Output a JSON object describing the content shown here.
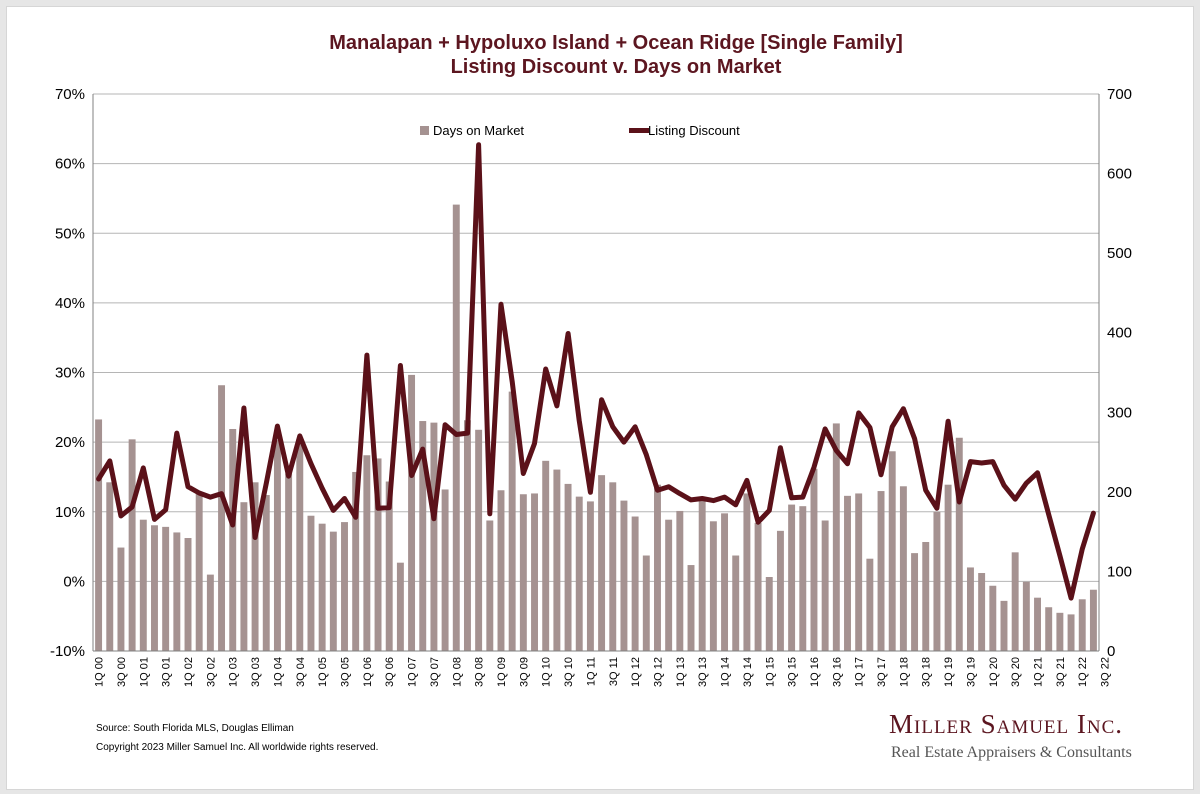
{
  "chart_data": {
    "type": "bar+line",
    "title_line1": "Manalapan + Hypoluxo Island + Ocean Ridge [Single Family]",
    "title_line2": "Listing Discount v. Days on Market",
    "left_axis": {
      "min": -10,
      "max": 70,
      "step": 10,
      "ticks": [
        "-10%",
        "0%",
        "10%",
        "20%",
        "30%",
        "40%",
        "50%",
        "60%",
        "70%"
      ]
    },
    "right_axis": {
      "min": 0,
      "max": 700,
      "step": 100,
      "ticks": [
        "0",
        "100",
        "200",
        "300",
        "400",
        "500",
        "600",
        "700"
      ]
    },
    "grid": true,
    "legend_placement": "top",
    "x_tick_labels": [
      "1Q 00",
      "3Q 00",
      "1Q 01",
      "3Q 01",
      "1Q 02",
      "3Q 02",
      "1Q 03",
      "3Q 03",
      "1Q 04",
      "3Q 04",
      "1Q 05",
      "3Q 05",
      "1Q 06",
      "3Q 06",
      "1Q 07",
      "3Q 07",
      "1Q 08",
      "3Q 08",
      "1Q 09",
      "3Q 09",
      "1Q 10",
      "3Q 10",
      "1Q 11",
      "3Q 11",
      "1Q 12",
      "3Q 12",
      "1Q 13",
      "3Q 13",
      "1Q 14",
      "3Q 14",
      "1Q 15",
      "3Q 15",
      "1Q 16",
      "3Q 16",
      "1Q 17",
      "3Q 17",
      "1Q 18",
      "3Q 18",
      "1Q 19",
      "3Q 19",
      "1Q 20",
      "3Q 20",
      "1Q 21",
      "3Q 21",
      "1Q 22",
      "3Q 22"
    ],
    "series": [
      {
        "name": "Days on Market",
        "type": "bar",
        "axis": "right",
        "color": "#a59291",
        "values": [
          291,
          212,
          130,
          266,
          165,
          158,
          156,
          149,
          142,
          198,
          96,
          334,
          279,
          187,
          212,
          196,
          265,
          223,
          266,
          170,
          160,
          150,
          162,
          225,
          246,
          242,
          213,
          111,
          347,
          289,
          287,
          203,
          561,
          290,
          278,
          164,
          202,
          326,
          197,
          198,
          239,
          228,
          210,
          194,
          188,
          221,
          212,
          189,
          169,
          120,
          209,
          165,
          176,
          108,
          191,
          163,
          173,
          120,
          198,
          161,
          93,
          151,
          184,
          182,
          229,
          164,
          286,
          195,
          198,
          116,
          201,
          251,
          207,
          123,
          137,
          175,
          209,
          268,
          105,
          98,
          82,
          63,
          124,
          87,
          67,
          55,
          48,
          46,
          65,
          77
        ]
      },
      {
        "name": "Listing Discount",
        "type": "line",
        "axis": "left",
        "color": "#5b1119",
        "values": [
          14.7,
          17.3,
          9.4,
          10.7,
          16.3,
          8.9,
          10.3,
          21.3,
          13.6,
          12.7,
          12.1,
          12.6,
          8.1,
          24.9,
          6.3,
          14.1,
          22.3,
          15.1,
          20.9,
          16.9,
          13.4,
          10.2,
          11.9,
          9.2,
          32.5,
          10.5,
          10.6,
          31.0,
          15.2,
          19.0,
          9.0,
          22.5,
          21.1,
          21.3,
          62.7,
          9.7,
          39.8,
          28.7,
          15.5,
          19.8,
          30.5,
          25.2,
          35.6,
          23.1,
          12.8,
          26.1,
          22.2,
          20.0,
          22.2,
          18.2,
          13.1,
          13.6,
          12.6,
          11.7,
          11.9,
          11.6,
          12.1,
          11.0,
          14.5,
          8.5,
          10.2,
          19.2,
          12.0,
          12.1,
          16.4,
          21.9,
          18.8,
          16.9,
          24.2,
          22.1,
          15.3,
          22.2,
          24.8,
          20.5,
          13.1,
          10.5,
          23.0,
          11.4,
          17.2,
          17.0,
          17.2,
          13.8,
          11.8,
          14.1,
          15.6,
          9.6,
          3.7,
          -2.4,
          4.6,
          9.8
        ]
      }
    ],
    "footer": {
      "source": "Source: South Florida MLS, Douglas Elliman",
      "copyright": "Copyright 2023 Miller Samuel Inc.  All worldwide rights reserved."
    },
    "brand": {
      "name": "Miller Samuel Inc.",
      "tagline": "Real Estate Appraisers & Consultants"
    },
    "colors": {
      "title": "#5c1620",
      "bar": "#a59291",
      "line": "#5b1119",
      "grid": "#b5b5b5"
    }
  }
}
